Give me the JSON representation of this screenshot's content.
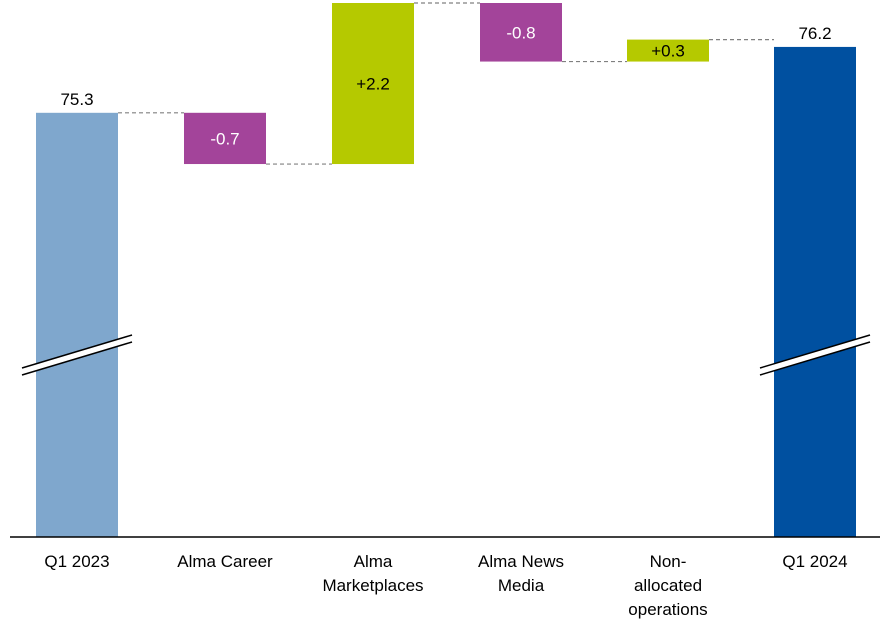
{
  "chart_data": {
    "type": "waterfall",
    "title": "",
    "xlabel": "",
    "ylabel": "",
    "axis_break": true,
    "categories": [
      [
        "Q1 2023"
      ],
      [
        "Alma Career"
      ],
      [
        "Alma",
        "Marketplaces"
      ],
      [
        "Alma News",
        "Media"
      ],
      [
        "Non-",
        "allocated",
        "operations"
      ],
      [
        "Q1 2024"
      ]
    ],
    "steps": [
      {
        "kind": "total",
        "value": 75.3,
        "label": "75.3",
        "color": "#7fa7cd"
      },
      {
        "kind": "delta",
        "value": -0.7,
        "label": "-0.7",
        "color": "#a3449a"
      },
      {
        "kind": "delta",
        "value": 2.2,
        "label": "+2.2",
        "color": "#b5c900"
      },
      {
        "kind": "delta",
        "value": -0.8,
        "label": "-0.8",
        "color": "#a3449a"
      },
      {
        "kind": "delta",
        "value": 0.3,
        "label": "+0.3",
        "color": "#b5c900"
      },
      {
        "kind": "total",
        "value": 76.2,
        "label": "76.2",
        "color": "#0050a0"
      }
    ],
    "connector_color": "#808080"
  }
}
